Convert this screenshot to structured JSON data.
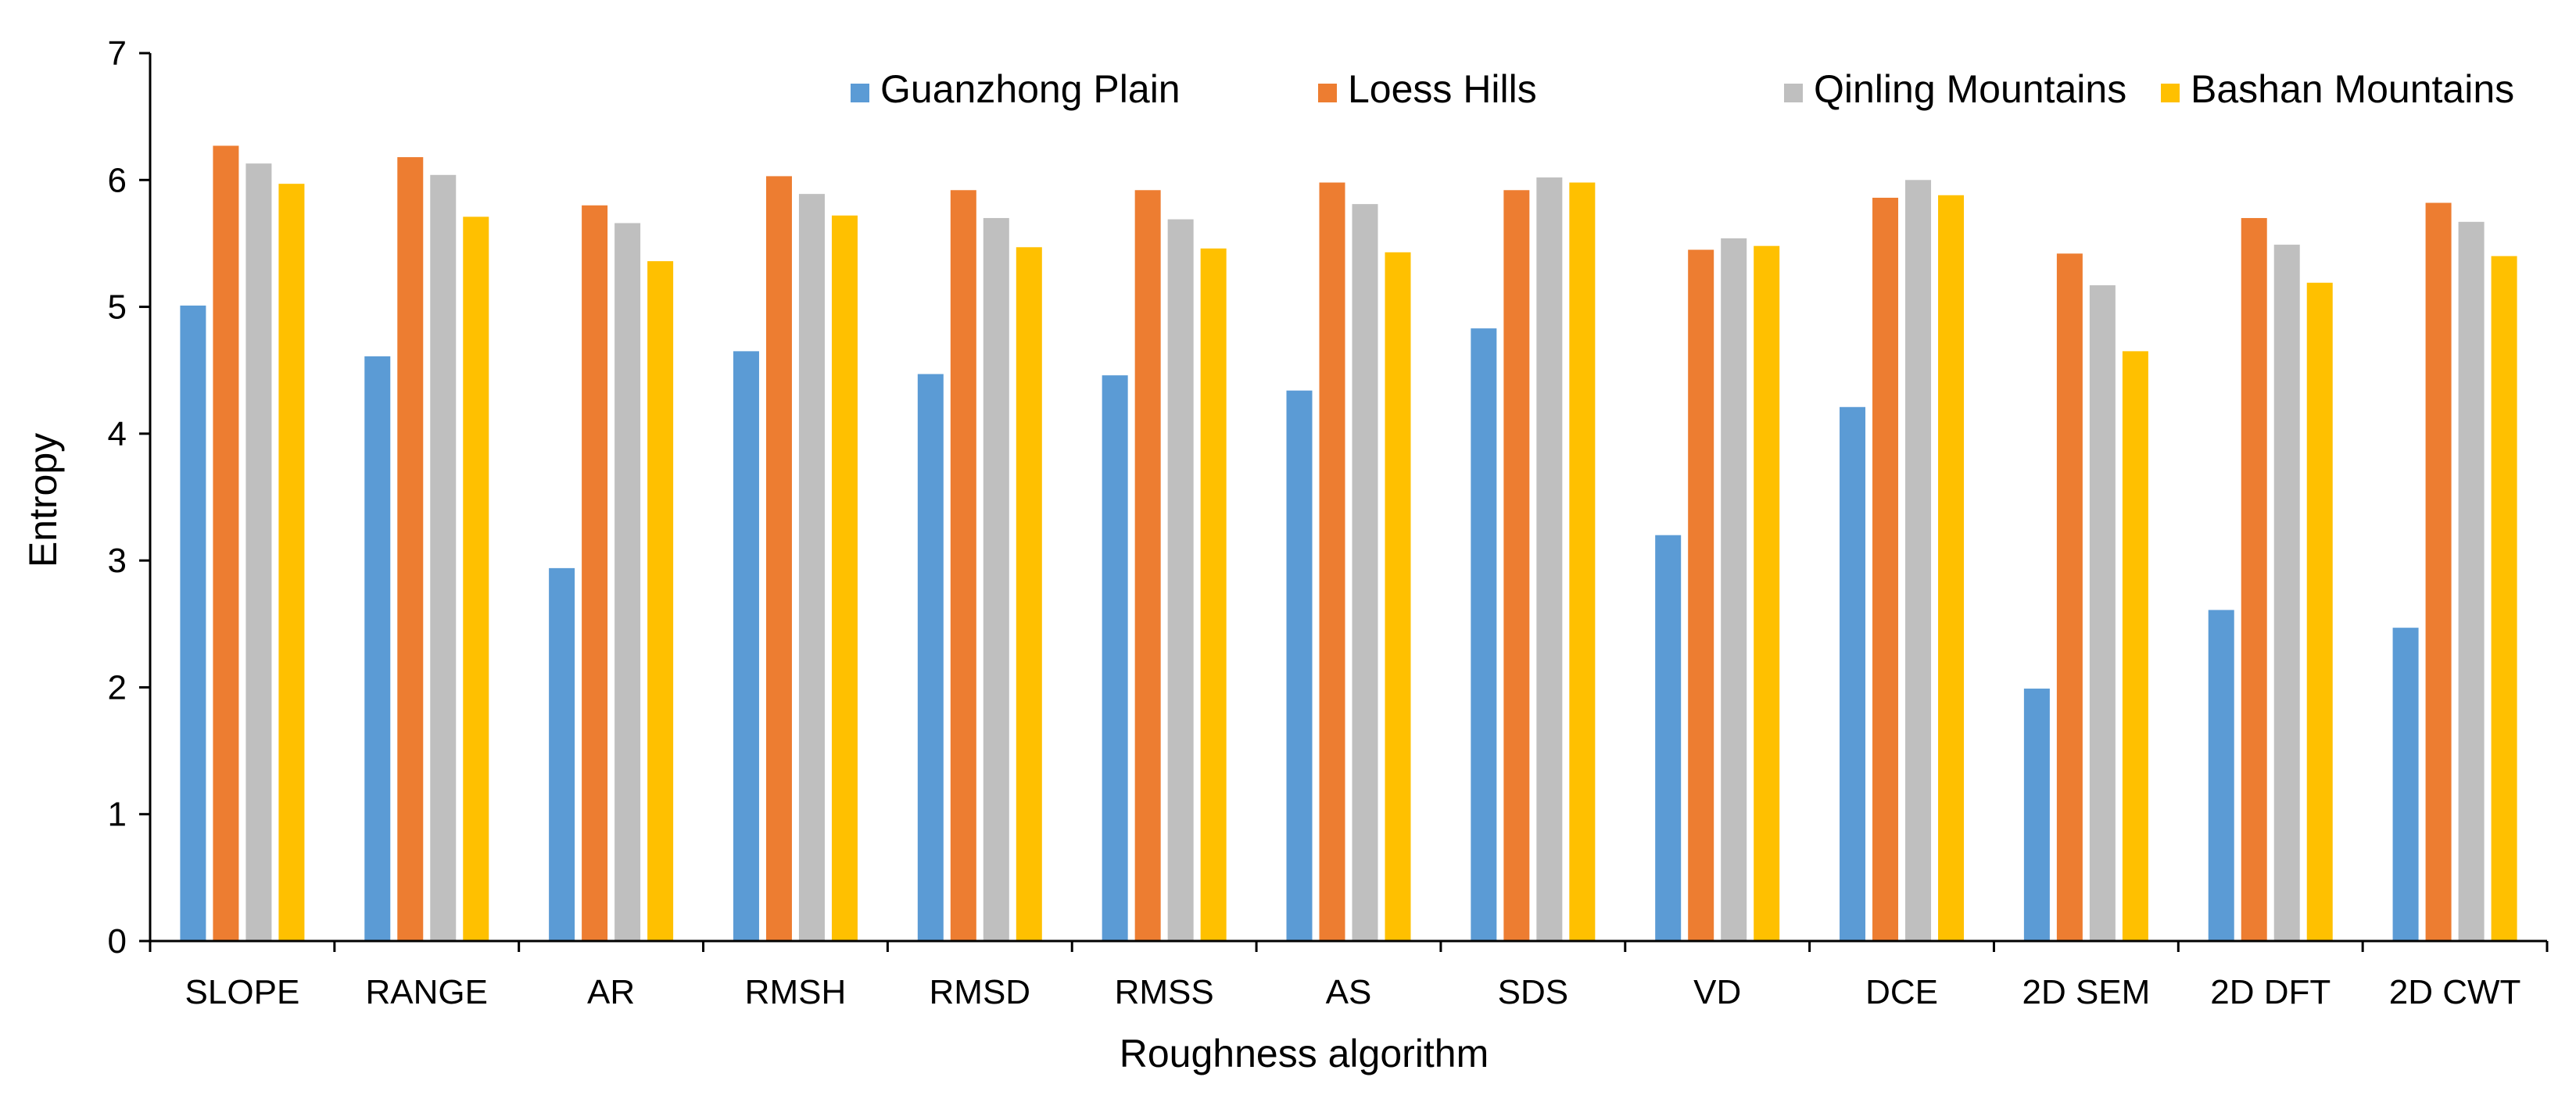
{
  "chart_data": {
    "type": "bar",
    "title": "",
    "xlabel": "Roughness algorithm",
    "ylabel": "Entropy",
    "ylim": [
      0,
      7
    ],
    "yticks": [
      "0",
      "1",
      "2",
      "3",
      "4",
      "5",
      "6",
      "7"
    ],
    "grid": false,
    "legend_position": "top-right",
    "categories": [
      "SLOPE",
      "RANGE",
      "AR",
      "RMSH",
      "RMSD",
      "RMSS",
      "AS",
      "SDS",
      "VD",
      "DCE",
      "2D SEM",
      "2D DFT",
      "2D CWT"
    ],
    "series": [
      {
        "name": "Guanzhong Plain",
        "color": "#5B9BD5",
        "values": [
          5.01,
          4.61,
          2.94,
          4.65,
          4.47,
          4.46,
          4.34,
          4.83,
          3.2,
          4.21,
          1.99,
          2.61,
          2.47
        ]
      },
      {
        "name": "Loess Hills",
        "color": "#ED7D31",
        "values": [
          6.27,
          6.18,
          5.8,
          6.03,
          5.92,
          5.92,
          5.98,
          5.92,
          5.45,
          5.86,
          5.42,
          5.7,
          5.82
        ]
      },
      {
        "name": "Qinling Mountains",
        "color": "#BFBFBF",
        "values": [
          6.13,
          6.04,
          5.66,
          5.89,
          5.7,
          5.69,
          5.81,
          6.02,
          5.54,
          6.0,
          5.17,
          5.49,
          5.67
        ]
      },
      {
        "name": "Bashan Mountains",
        "color": "#FFC000",
        "values": [
          5.97,
          5.71,
          5.36,
          5.72,
          5.47,
          5.46,
          5.43,
          5.98,
          5.48,
          5.88,
          4.65,
          5.19,
          5.4
        ]
      }
    ]
  }
}
